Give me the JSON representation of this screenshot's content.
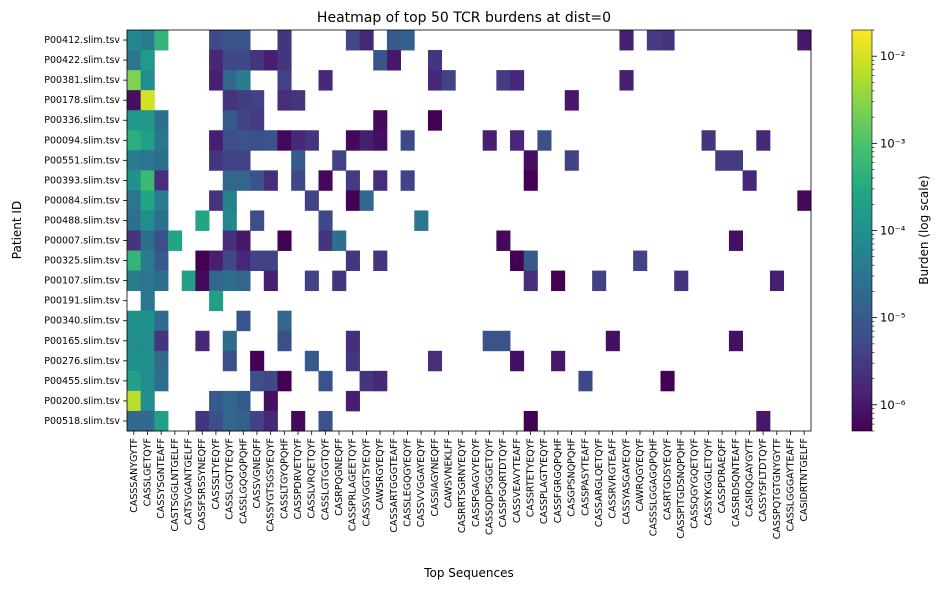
{
  "chart_data": {
    "type": "heatmap",
    "title": "Heatmap of top 50 TCR burdens at dist=0",
    "xlabel": "Top Sequences",
    "ylabel": "Patient ID",
    "colorbar_label": "Burden (log scale)",
    "colormap": "viridis",
    "color_scale": "log",
    "vmin": 5e-07,
    "vmax": 0.02,
    "colorbar_ticks": [
      {
        "label": "10⁻²",
        "value": 0.01
      },
      {
        "label": "10⁻³",
        "value": 0.001
      },
      {
        "label": "10⁻⁴",
        "value": 0.0001
      },
      {
        "label": "10⁻⁵",
        "value": 1e-05
      },
      {
        "label": "10⁻⁶",
        "value": 1e-06
      }
    ],
    "rows": [
      "P00412.slim.tsv",
      "P00422.slim.tsv",
      "P00381.slim.tsv",
      "P00178.slim.tsv",
      "P00336.slim.tsv",
      "P00094.slim.tsv",
      "P00551.slim.tsv",
      "P00393.slim.tsv",
      "P00084.slim.tsv",
      "P00488.slim.tsv",
      "P00007.slim.tsv",
      "P00325.slim.tsv",
      "P00107.slim.tsv",
      "P00191.slim.tsv",
      "P00340.slim.tsv",
      "P00165.slim.tsv",
      "P00276.slim.tsv",
      "P00455.slim.tsv",
      "P00200.slim.tsv",
      "P00518.slim.tsv"
    ],
    "columns": [
      "CASSSANYGYTF",
      "CASSLGETQYF",
      "CASSYSGNTEAFF",
      "CASTSGGLNTGELFF",
      "CATSVGANTGELFF",
      "CASSFSRSSYNEQFF",
      "CASSSLTYEQYF",
      "CASSLGQTYEQYF",
      "CASSLGQGQPQHF",
      "CASSVGNEQFF",
      "CASSYGTSGSYEQYF",
      "CASSLTGYQPQHF",
      "CASSPDRVETQYF",
      "CASSLVRQETQYF",
      "CASSLGTGGTQYF",
      "CASRPQGNEQFF",
      "CASSPRLAGEETQYF",
      "CASSVGGTSYEQYF",
      "CAWSRGYEQYF",
      "CASSARTGGGTEAFF",
      "CASSLEGQGYEQYF",
      "CASSVVGGAYEQYF",
      "CASSIAGYNEQFF",
      "CAWSVNEKLFF",
      "CASRRTSGRNYEQYF",
      "CASSPGAGVYEQYF",
      "CASSQDPSGGETQYF",
      "CASSPGQRTDTQYF",
      "CASSVEAVYTEAFF",
      "CASSRTETYEQYF",
      "CASSPLAGTYEQYF",
      "CASSFGRGQPQHF",
      "CASGPSNQPQHF",
      "CASSPASYTEAFF",
      "CASSARGLQETQYF",
      "CASSRVRGTEAFF",
      "CASSYASGAYEQYF",
      "CAWRQGYEQYF",
      "CASSSLGGAGQPQHF",
      "CASRTGDSYEQYF",
      "CASSPITGDSNQPQHF",
      "CASSQGYGQETQYF",
      "CASSYKGGLETQYF",
      "CASSPDRAEQFF",
      "CASSRDSQNTEAFF",
      "CASIRQGAYGYTF",
      "CASSYSFLTDTQYF",
      "CASSPQTGTGNYGYTF",
      "CASSLGGGAYTEAFF",
      "CASIDRTNTGELFF"
    ],
    "cells": [
      [
        0,
        0,
        -4.2
      ],
      [
        1,
        0,
        -4.4
      ],
      [
        2,
        0,
        -3.3
      ],
      [
        6,
        0,
        -5.3
      ],
      [
        7,
        0,
        -5.1
      ],
      [
        8,
        0,
        -5.1
      ],
      [
        11,
        0,
        -5.6
      ],
      [
        16,
        0,
        -5.3
      ],
      [
        17,
        0,
        -5.8
      ],
      [
        19,
        0,
        -5.0
      ],
      [
        20,
        0,
        -4.9
      ],
      [
        36,
        0,
        -5.9
      ],
      [
        38,
        0,
        -5.5
      ],
      [
        39,
        0,
        -5.6
      ],
      [
        49,
        0,
        -6.0
      ],
      [
        0,
        1,
        -4.5
      ],
      [
        1,
        1,
        -3.8
      ],
      [
        6,
        1,
        -5.8
      ],
      [
        7,
        1,
        -5.3
      ],
      [
        8,
        1,
        -5.3
      ],
      [
        9,
        1,
        -5.6
      ],
      [
        10,
        1,
        -5.9
      ],
      [
        11,
        1,
        -5.6
      ],
      [
        18,
        1,
        -5.1
      ],
      [
        19,
        1,
        -6.0
      ],
      [
        22,
        1,
        -5.6
      ],
      [
        0,
        2,
        -2.6
      ],
      [
        1,
        2,
        -4.1
      ],
      [
        6,
        2,
        -5.9
      ],
      [
        7,
        2,
        -4.8
      ],
      [
        8,
        2,
        -4.4
      ],
      [
        11,
        2,
        -5.4
      ],
      [
        14,
        2,
        -5.8
      ],
      [
        22,
        2,
        -5.8
      ],
      [
        23,
        2,
        -5.4
      ],
      [
        27,
        2,
        -5.5
      ],
      [
        28,
        2,
        -5.8
      ],
      [
        36,
        2,
        -5.9
      ],
      [
        0,
        3,
        -6.1
      ],
      [
        1,
        3,
        -2.0
      ],
      [
        7,
        3,
        -5.6
      ],
      [
        8,
        3,
        -5.5
      ],
      [
        9,
        3,
        -5.4
      ],
      [
        11,
        3,
        -5.7
      ],
      [
        12,
        3,
        -5.6
      ],
      [
        32,
        3,
        -6.0
      ],
      [
        0,
        4,
        -3.9
      ],
      [
        1,
        4,
        -3.9
      ],
      [
        2,
        4,
        -4.6
      ],
      [
        7,
        4,
        -5.0
      ],
      [
        8,
        4,
        -5.4
      ],
      [
        9,
        4,
        -5.5
      ],
      [
        18,
        4,
        -6.2
      ],
      [
        22,
        4,
        -6.3
      ],
      [
        0,
        5,
        -3.4
      ],
      [
        1,
        5,
        -3.7
      ],
      [
        2,
        5,
        -4.5
      ],
      [
        6,
        5,
        -5.9
      ],
      [
        7,
        5,
        -5.2
      ],
      [
        8,
        5,
        -5.1
      ],
      [
        9,
        5,
        -5.2
      ],
      [
        10,
        5,
        -5.1
      ],
      [
        11,
        5,
        -6.2
      ],
      [
        12,
        5,
        -5.8
      ],
      [
        13,
        5,
        -5.6
      ],
      [
        16,
        5,
        -6.2
      ],
      [
        17,
        5,
        -5.9
      ],
      [
        18,
        5,
        -6.1
      ],
      [
        20,
        5,
        -5.3
      ],
      [
        26,
        5,
        -5.9
      ],
      [
        28,
        5,
        -5.8
      ],
      [
        30,
        5,
        -5.2
      ],
      [
        42,
        5,
        -5.6
      ],
      [
        46,
        5,
        -5.8
      ],
      [
        0,
        6,
        -4.4
      ],
      [
        1,
        6,
        -4.5
      ],
      [
        2,
        6,
        -4.6
      ],
      [
        6,
        6,
        -5.6
      ],
      [
        7,
        6,
        -5.4
      ],
      [
        8,
        6,
        -5.4
      ],
      [
        12,
        6,
        -5.0
      ],
      [
        15,
        6,
        -5.4
      ],
      [
        29,
        6,
        -6.1
      ],
      [
        32,
        6,
        -5.4
      ],
      [
        43,
        6,
        -5.5
      ],
      [
        44,
        6,
        -5.5
      ],
      [
        0,
        7,
        -4.0
      ],
      [
        1,
        7,
        -3.2
      ],
      [
        2,
        7,
        -5.7
      ],
      [
        7,
        7,
        -4.8
      ],
      [
        8,
        7,
        -4.8
      ],
      [
        9,
        7,
        -5.1
      ],
      [
        10,
        7,
        -5.7
      ],
      [
        12,
        7,
        -5.3
      ],
      [
        14,
        7,
        -6.2
      ],
      [
        16,
        7,
        -5.5
      ],
      [
        18,
        7,
        -5.7
      ],
      [
        20,
        7,
        -5.4
      ],
      [
        29,
        7,
        -6.3
      ],
      [
        45,
        7,
        -5.8
      ],
      [
        0,
        8,
        -4.5
      ],
      [
        1,
        8,
        -3.6
      ],
      [
        2,
        8,
        -4.4
      ],
      [
        6,
        8,
        -5.6
      ],
      [
        7,
        8,
        -4.3
      ],
      [
        13,
        8,
        -5.4
      ],
      [
        16,
        8,
        -6.3
      ],
      [
        17,
        8,
        -4.8
      ],
      [
        49,
        8,
        -6.2
      ],
      [
        0,
        9,
        -4.6
      ],
      [
        1,
        9,
        -4.1
      ],
      [
        2,
        9,
        -4.6
      ],
      [
        5,
        9,
        -3.6
      ],
      [
        7,
        9,
        -4.2
      ],
      [
        9,
        9,
        -5.2
      ],
      [
        14,
        9,
        -5.3
      ],
      [
        21,
        9,
        -4.5
      ],
      [
        0,
        10,
        -5.6
      ],
      [
        1,
        10,
        -4.6
      ],
      [
        2,
        10,
        -5.2
      ],
      [
        3,
        10,
        -3.6
      ],
      [
        7,
        10,
        -5.7
      ],
      [
        8,
        10,
        -6.0
      ],
      [
        11,
        10,
        -6.3
      ],
      [
        14,
        10,
        -5.6
      ],
      [
        15,
        10,
        -4.6
      ],
      [
        27,
        10,
        -6.2
      ],
      [
        44,
        10,
        -6.1
      ],
      [
        0,
        11,
        -3.3
      ],
      [
        1,
        11,
        -4.4
      ],
      [
        2,
        11,
        -5.0
      ],
      [
        5,
        11,
        -6.3
      ],
      [
        6,
        11,
        -5.9
      ],
      [
        7,
        11,
        -5.3
      ],
      [
        8,
        11,
        -5.8
      ],
      [
        9,
        11,
        -5.4
      ],
      [
        10,
        11,
        -5.4
      ],
      [
        16,
        11,
        -5.6
      ],
      [
        18,
        11,
        -5.6
      ],
      [
        28,
        11,
        -6.3
      ],
      [
        29,
        11,
        -5.0
      ],
      [
        37,
        11,
        -5.4
      ],
      [
        0,
        12,
        -4.4
      ],
      [
        1,
        12,
        -4.5
      ],
      [
        2,
        12,
        -4.6
      ],
      [
        4,
        12,
        -3.7
      ],
      [
        5,
        12,
        -6.2
      ],
      [
        6,
        12,
        -4.8
      ],
      [
        7,
        12,
        -4.6
      ],
      [
        8,
        12,
        -4.8
      ],
      [
        10,
        12,
        -5.9
      ],
      [
        13,
        12,
        -5.4
      ],
      [
        15,
        12,
        -5.6
      ],
      [
        29,
        12,
        -5.7
      ],
      [
        31,
        12,
        -6.3
      ],
      [
        34,
        12,
        -5.4
      ],
      [
        40,
        12,
        -5.6
      ],
      [
        47,
        12,
        -5.9
      ],
      [
        1,
        13,
        -4.5
      ],
      [
        6,
        13,
        -3.7
      ],
      [
        0,
        14,
        -4.0
      ],
      [
        1,
        14,
        -4.0
      ],
      [
        2,
        14,
        -4.7
      ],
      [
        8,
        14,
        -5.1
      ],
      [
        11,
        14,
        -4.8
      ],
      [
        0,
        15,
        -4.1
      ],
      [
        1,
        15,
        -4.1
      ],
      [
        2,
        15,
        -5.6
      ],
      [
        5,
        15,
        -5.8
      ],
      [
        7,
        15,
        -4.7
      ],
      [
        11,
        15,
        -5.2
      ],
      [
        16,
        15,
        -5.7
      ],
      [
        26,
        15,
        -5.1
      ],
      [
        27,
        15,
        -5.1
      ],
      [
        35,
        15,
        -6.1
      ],
      [
        44,
        15,
        -6.1
      ],
      [
        0,
        16,
        -4.0
      ],
      [
        1,
        16,
        -4.0
      ],
      [
        2,
        16,
        -4.7
      ],
      [
        7,
        16,
        -5.2
      ],
      [
        9,
        16,
        -6.3
      ],
      [
        13,
        16,
        -5.0
      ],
      [
        16,
        16,
        -5.6
      ],
      [
        22,
        16,
        -5.7
      ],
      [
        28,
        16,
        -6.1
      ],
      [
        31,
        16,
        -6.0
      ],
      [
        0,
        17,
        -3.7
      ],
      [
        1,
        17,
        -4.1
      ],
      [
        2,
        17,
        -4.6
      ],
      [
        9,
        17,
        -5.2
      ],
      [
        10,
        17,
        -5.3
      ],
      [
        11,
        17,
        -6.5
      ],
      [
        14,
        17,
        -5.1
      ],
      [
        17,
        17,
        -5.6
      ],
      [
        18,
        17,
        -5.8
      ],
      [
        33,
        17,
        -5.3
      ],
      [
        39,
        17,
        -6.3
      ],
      [
        0,
        18,
        -2.2
      ],
      [
        1,
        18,
        -4.1
      ],
      [
        6,
        18,
        -5.0
      ],
      [
        7,
        18,
        -4.8
      ],
      [
        8,
        18,
        -5.0
      ],
      [
        10,
        18,
        -6.1
      ],
      [
        16,
        18,
        -5.9
      ],
      [
        0,
        19,
        -4.7
      ],
      [
        1,
        19,
        -4.7
      ],
      [
        2,
        19,
        -3.7
      ],
      [
        5,
        19,
        -5.6
      ],
      [
        6,
        19,
        -5.2
      ],
      [
        7,
        19,
        -4.8
      ],
      [
        8,
        19,
        -4.9
      ],
      [
        9,
        19,
        -5.4
      ],
      [
        10,
        19,
        -5.8
      ],
      [
        12,
        19,
        -6.2
      ],
      [
        14,
        19,
        -5.1
      ],
      [
        29,
        19,
        -6.3
      ],
      [
        46,
        19,
        -6.0
      ]
    ]
  }
}
